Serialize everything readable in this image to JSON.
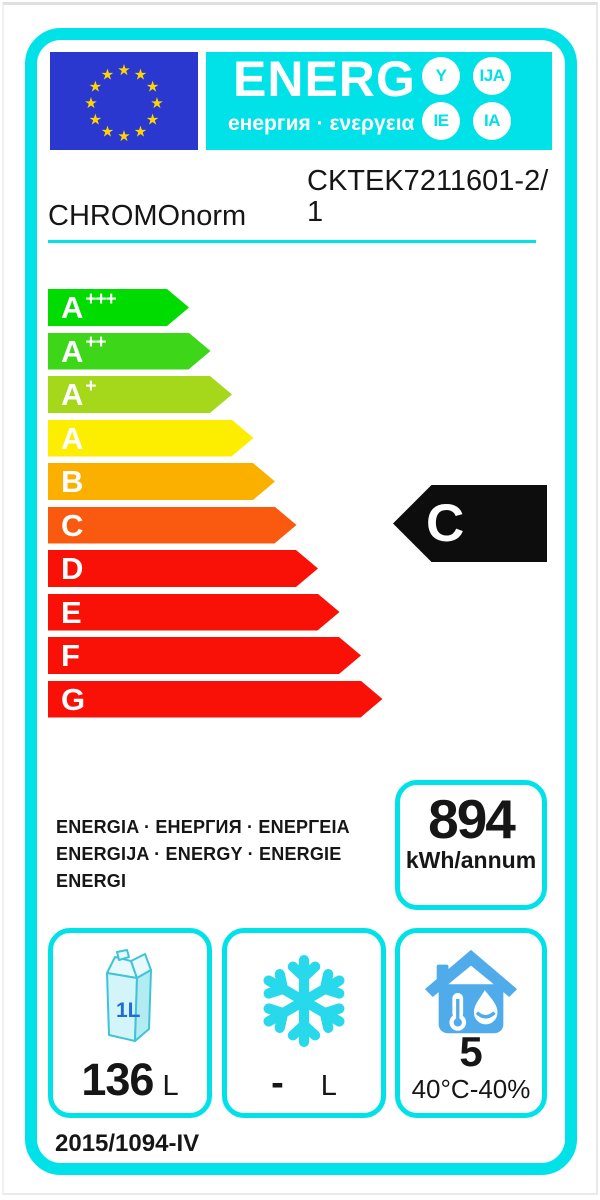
{
  "theme": {
    "cyan": "#00e1e8",
    "eu-blue": "#2b38cf",
    "star-yellow": "#ffd500",
    "ink": "#161616",
    "arrow-black": "#0d0d0d",
    "house-blue": "#4fabea",
    "flake-cyan": "#27d9ea",
    "carton-stroke": "#3fc3d9",
    "carton-front": "#d3f4f8",
    "carton-side": "#b3ebf3",
    "carton-top": "#e6fafc",
    "carton-label-blue": "#1d6fd6"
  },
  "header": {
    "word": "ENERG",
    "subtitle": "енергия · ενεργεια",
    "circles": [
      "Y",
      "IJA",
      "IE",
      "IA"
    ],
    "flag": {
      "star_count": 12,
      "star_glyph": "★"
    }
  },
  "supplier": {
    "brand": "CHROMOnorm",
    "model": "CKTEK7211601-2/1"
  },
  "rating_scale": {
    "grades": [
      {
        "letter": "A",
        "sup": "+++",
        "color": "#00db00"
      },
      {
        "letter": "A",
        "sup": "++",
        "color": "#3ed619"
      },
      {
        "letter": "A",
        "sup": "+",
        "color": "#a5d71b"
      },
      {
        "letter": "A",
        "sup": "",
        "color": "#fdee00"
      },
      {
        "letter": "B",
        "sup": "",
        "color": "#fbb000"
      },
      {
        "letter": "C",
        "sup": "",
        "color": "#fa5a0f"
      },
      {
        "letter": "D",
        "sup": "",
        "color": "#f91006"
      },
      {
        "letter": "E",
        "sup": "",
        "color": "#f91006"
      },
      {
        "letter": "F",
        "sup": "",
        "color": "#f91006"
      },
      {
        "letter": "G",
        "sup": "",
        "color": "#f91006"
      }
    ]
  },
  "rating": {
    "current": "C"
  },
  "energy_text": {
    "lines": [
      "ENERGIA · ЕНЕРГИЯ · ΕΝΕΡΓΕΙΑ",
      "ENERGIJA · ENERGY · ENERGIE",
      "ENERGI"
    ]
  },
  "consumption": {
    "value": "894",
    "unit": "kWh/annum"
  },
  "compartments": {
    "fridge": {
      "value": "136",
      "unit": "L",
      "carton_label": "1L"
    },
    "freezer": {
      "value": "-",
      "unit": "L"
    },
    "climate": {
      "value": "5",
      "condition": "40°C-40%"
    }
  },
  "regulation": "2015/1094-IV"
}
